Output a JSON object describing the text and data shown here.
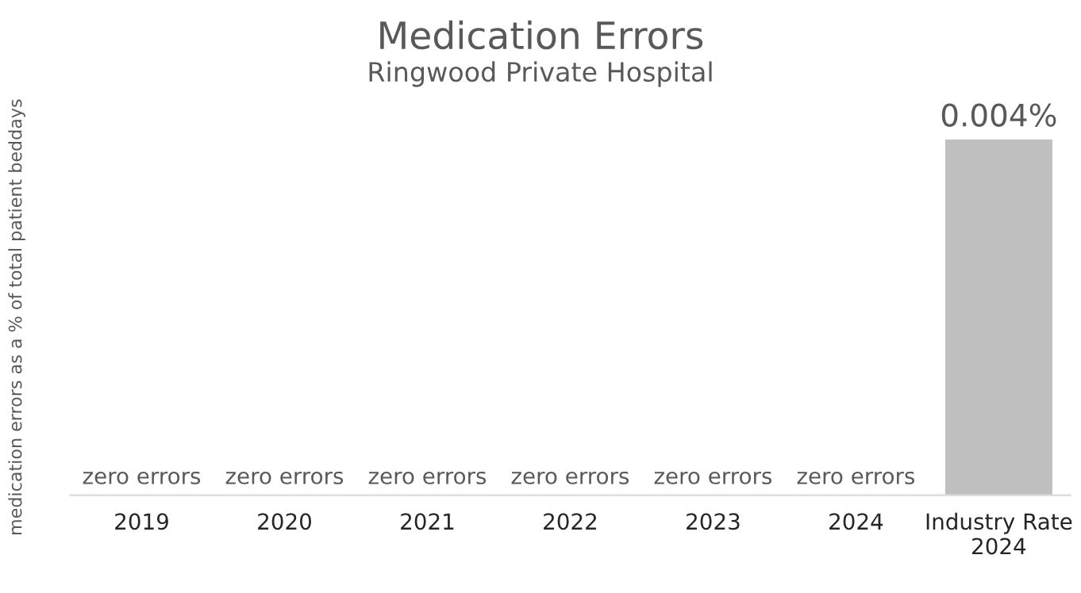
{
  "chart_data": {
    "type": "bar",
    "title": "Medication Errors",
    "subtitle": "Ringwood Private Hospital",
    "ylabel": "medication errors as a % of total patient beddays",
    "categories": [
      "2019",
      "2020",
      "2021",
      "2022",
      "2023",
      "2024",
      "Industry Rate\n2024"
    ],
    "values": [
      0,
      0,
      0,
      0,
      0,
      0,
      0.004
    ],
    "value_labels": [
      "zero errors",
      "zero errors",
      "zero errors",
      "zero errors",
      "zero errors",
      "zero errors",
      "0.004%"
    ],
    "color": "#bfbfbf",
    "grid": false,
    "legend": false
  }
}
